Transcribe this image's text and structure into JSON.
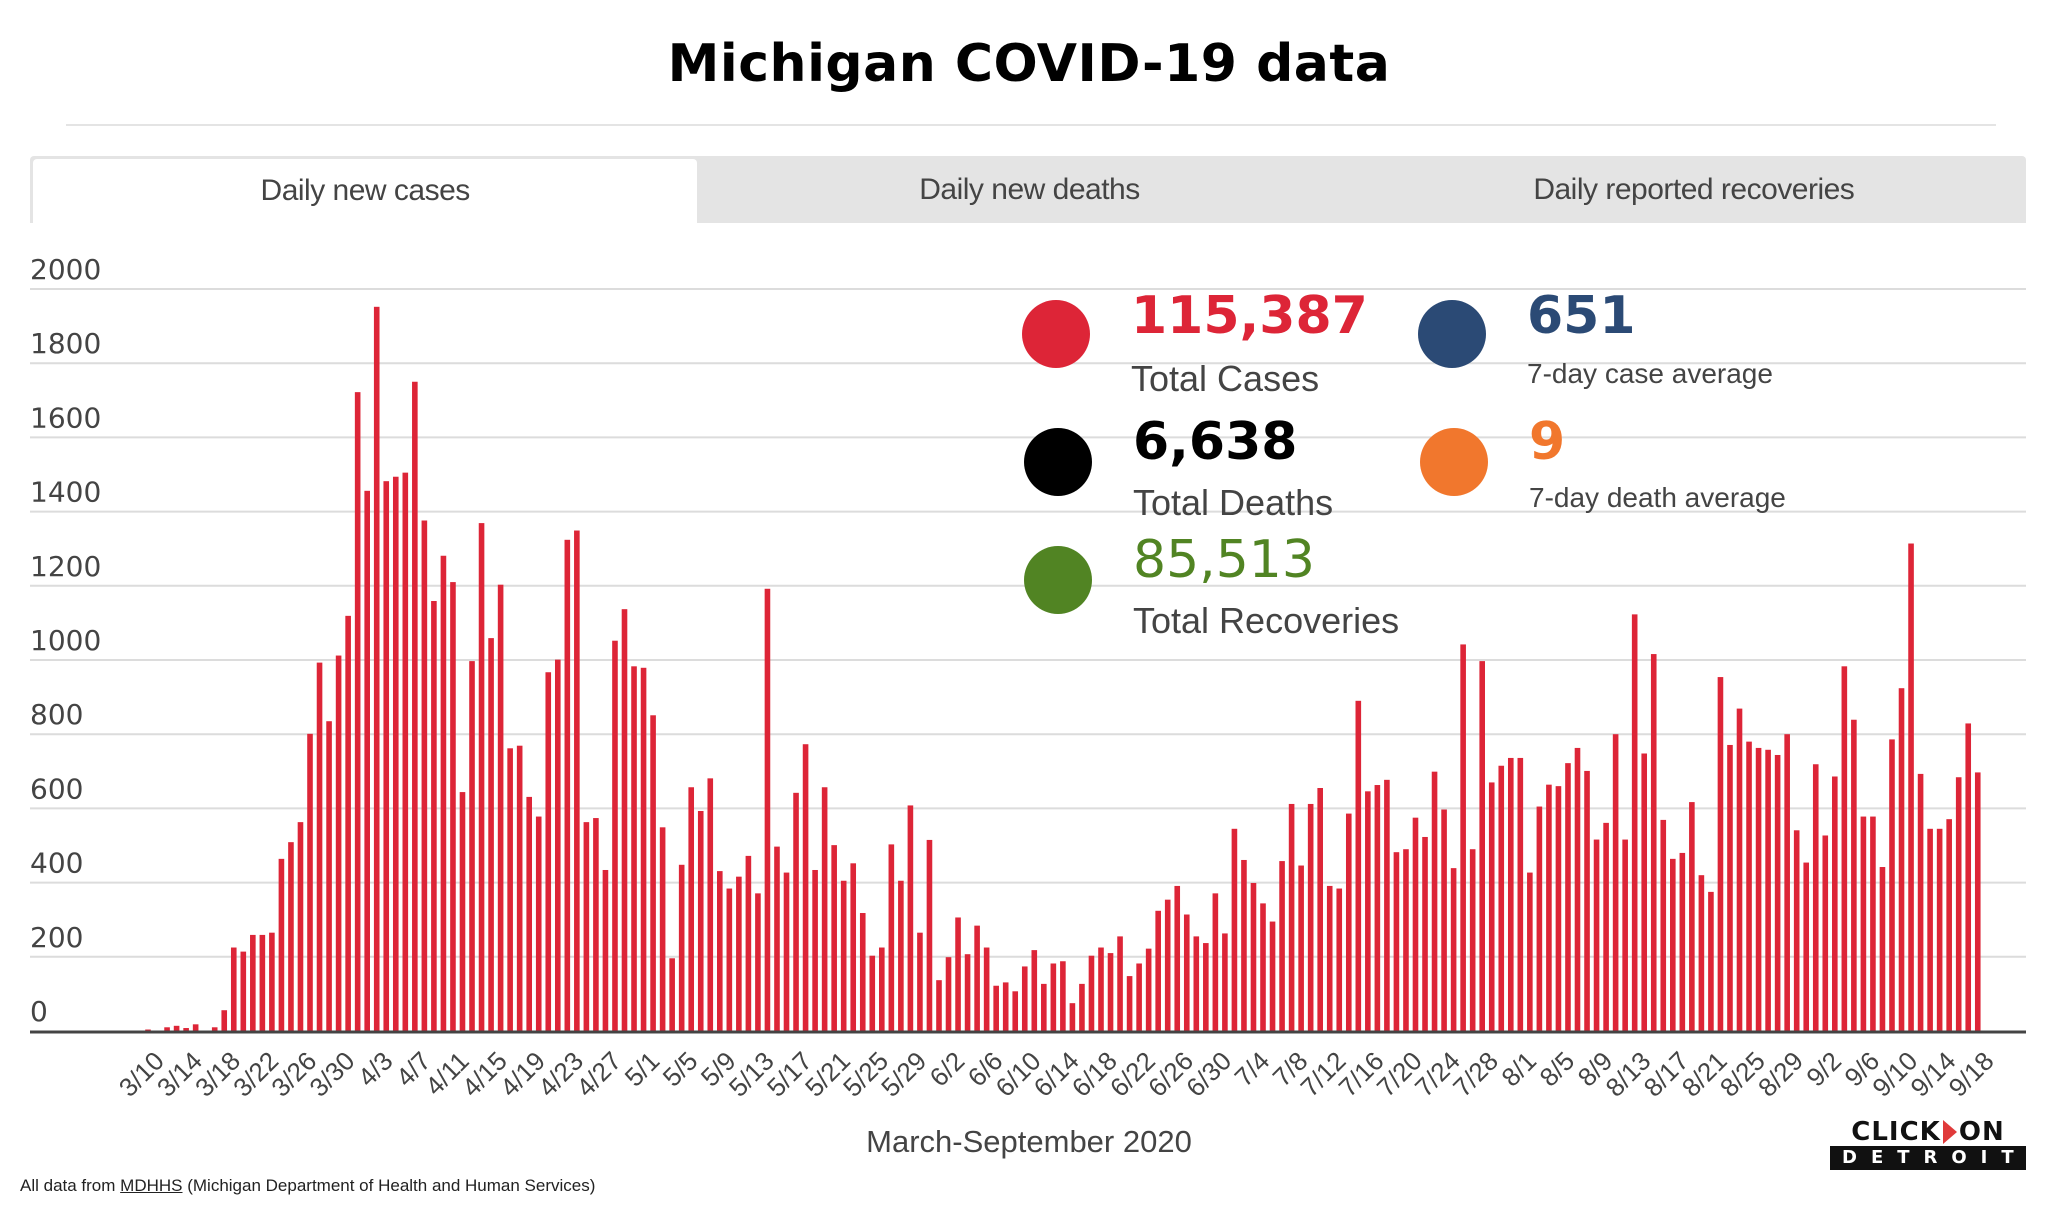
{
  "header": {
    "title": "Michigan COVID-19 data"
  },
  "tabs": [
    {
      "label": "Daily new cases",
      "active": true
    },
    {
      "label": "Daily new deaths",
      "active": false
    },
    {
      "label": "Daily reported recoveries",
      "active": false
    }
  ],
  "stats": {
    "total_cases": {
      "value": "115,387",
      "label": "Total Cases",
      "color": "#dd2537"
    },
    "total_deaths": {
      "value": "6,638",
      "label": "Total Deaths",
      "color": "#000000"
    },
    "total_recoveries": {
      "value": "85,513",
      "label": "Total Recoveries",
      "color": "#518423"
    },
    "case_avg": {
      "value": "651",
      "label": "7-day case average",
      "color": "#2b4a75"
    },
    "death_avg": {
      "value": "9",
      "label": "7-day death average",
      "color": "#f1772d"
    }
  },
  "footer": {
    "prefix": "All data from ",
    "link": "MDHHS",
    "suffix": " (Michigan Department of Health and Human Services)"
  },
  "logo": {
    "top_left": "CLICK",
    "top_right": "ON",
    "bottom": "DETROIT"
  },
  "chart_data": {
    "type": "bar",
    "title": "Daily new cases",
    "xlabel": "March-September 2020",
    "ylabel": "",
    "ylim": [
      0,
      2000
    ],
    "yticks": [
      0,
      200,
      400,
      600,
      800,
      1000,
      1200,
      1400,
      1600,
      1800,
      2000
    ],
    "grid": true,
    "bar_color": "#dd2537",
    "start_date": "3/10",
    "end_date": "9/18",
    "xtick_labels": [
      "3/10",
      "3/14",
      "3/18",
      "3/22",
      "3/26",
      "3/30",
      "4/3",
      "4/7",
      "4/11",
      "4/15",
      "4/19",
      "4/23",
      "4/27",
      "5/1",
      "5/5",
      "5/9",
      "5/13",
      "5/17",
      "5/21",
      "5/25",
      "5/29",
      "6/2",
      "6/6",
      "6/10",
      "6/14",
      "6/18",
      "6/22",
      "6/26",
      "6/30",
      "7/4",
      "7/8",
      "7/12",
      "7/16",
      "7/20",
      "7/24",
      "7/28",
      "8/1",
      "8/5",
      "8/9",
      "8/13",
      "8/17",
      "8/21",
      "8/25",
      "8/29",
      "9/2",
      "9/6",
      "9/10",
      "9/14",
      "9/18"
    ],
    "xtick_every": 4,
    "values": [
      4,
      0,
      10,
      14,
      8,
      18,
      0,
      10,
      56,
      225,
      214,
      259,
      259,
      265,
      464,
      509,
      563,
      801,
      993,
      835,
      1012,
      1119,
      1722,
      1456,
      1952,
      1482,
      1494,
      1505,
      1750,
      1376,
      1159,
      1281,
      1210,
      644,
      997,
      1369,
      1059,
      1203,
      762,
      769,
      631,
      578,
      967,
      1001,
      1324,
      1349,
      563,
      574,
      434,
      1052,
      1137,
      983,
      979,
      851,
      549,
      196,
      448,
      657,
      593,
      681,
      431,
      384,
      416,
      472,
      371,
      1192,
      497,
      427,
      642,
      773,
      434,
      657,
      501,
      405,
      452,
      318,
      203,
      225,
      503,
      405,
      608,
      265,
      515,
      137,
      199,
      306,
      207,
      284,
      225,
      122,
      131,
      107,
      174,
      218,
      127,
      182,
      188,
      75,
      127,
      203,
      225,
      210,
      255,
      148,
      182,
      222,
      324,
      354,
      391,
      314,
      255,
      237,
      371,
      263,
      545,
      461,
      399,
      344,
      295,
      458,
      612,
      446,
      612,
      655,
      391,
      384,
      586,
      890,
      646,
      663,
      677,
      482,
      490,
      575,
      523,
      699,
      597,
      439,
      1042,
      490,
      997,
      670,
      715,
      736,
      736,
      427,
      605,
      664,
      660,
      722,
      763,
      701,
      516,
      561,
      800,
      516,
      1123,
      748,
      1016,
      569,
      464,
      480,
      617,
      420,
      375,
      954,
      771,
      869,
      780,
      763,
      758,
      744,
      800,
      541,
      454,
      719,
      527,
      686,
      983,
      839,
      578,
      578,
      442,
      786,
      924,
      1314,
      693,
      545,
      545,
      571,
      684,
      829,
      697
    ]
  }
}
